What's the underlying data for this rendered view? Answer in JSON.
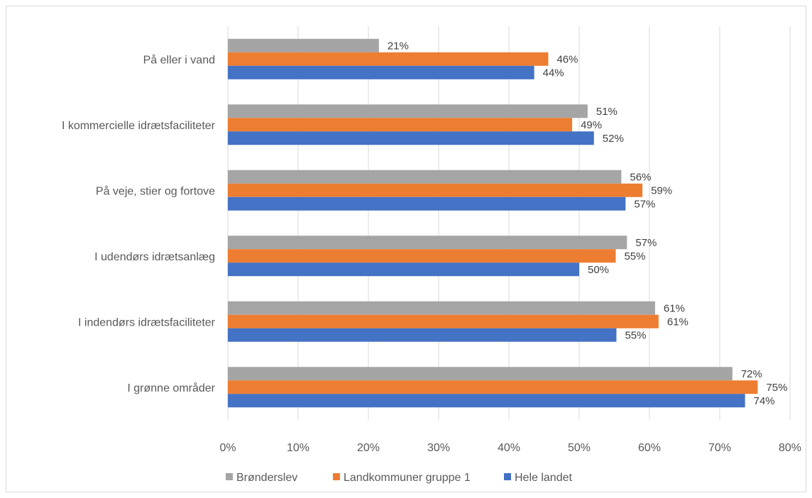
{
  "chart_data": {
    "type": "bar",
    "orientation": "horizontal",
    "categories": [
      "På eller i vand",
      "I kommercielle idrætsfaciliteter",
      "På veje, stier og fortove",
      "I udendørs idrætsanlæg",
      "I indendørs idrætsfaciliteter",
      "I grønne områder"
    ],
    "series": [
      {
        "name": "Brønderslev",
        "color": "#a5a5a5",
        "values": [
          21.5,
          51.2,
          56.0,
          56.8,
          60.8,
          71.8
        ],
        "labels": [
          "21%",
          "51%",
          "56%",
          "57%",
          "61%",
          "72%"
        ]
      },
      {
        "name": "Landkommuner gruppe 1",
        "color": "#ed7d31",
        "values": [
          45.6,
          49.0,
          59.0,
          55.2,
          61.3,
          75.4
        ],
        "labels": [
          "46%",
          "49%",
          "59%",
          "55%",
          "61%",
          "75%"
        ]
      },
      {
        "name": "Hele landet",
        "color": "#4472c4",
        "values": [
          43.6,
          52.1,
          56.6,
          50.0,
          55.3,
          73.6
        ],
        "labels": [
          "44%",
          "52%",
          "57%",
          "50%",
          "55%",
          "74%"
        ]
      }
    ],
    "xlim": [
      0,
      80
    ],
    "xticks": [
      "0%",
      "10%",
      "20%",
      "30%",
      "40%",
      "50%",
      "60%",
      "70%",
      "80%"
    ],
    "grid": true,
    "legend_position": "bottom"
  }
}
